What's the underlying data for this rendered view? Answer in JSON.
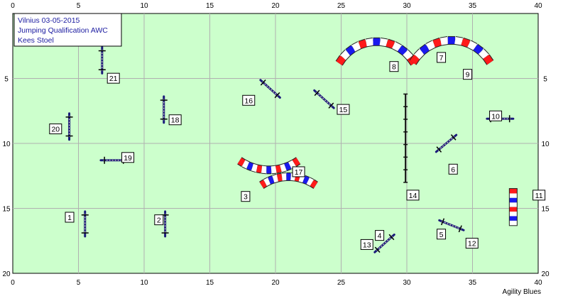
{
  "info_box": {
    "line1": "Vilnius 03-05-2015",
    "line2": "Jumping Qualification AWC",
    "line3": "Kees Stoel"
  },
  "x_ticks": [
    "0",
    "5",
    "10",
    "15",
    "20",
    "25",
    "30",
    "35",
    "40"
  ],
  "y_ticks": [
    "5",
    "10",
    "15",
    "20"
  ],
  "watermark": "Agility Blues",
  "colors": {
    "field": "#ccffcc",
    "grid": "#b0b0b0",
    "pole": "#1a1a7a",
    "red": "#ff1a1a",
    "blue": "#1a1aee",
    "white": "#ffffff"
  },
  "obstacles": [
    {
      "n": "1",
      "type": "jump",
      "x": 5.5,
      "y": 16.2,
      "angle": 90,
      "len": 1.9,
      "lx": 4.0,
      "ly": 15.3
    },
    {
      "n": "2",
      "type": "jump",
      "x": 11.6,
      "y": 16.2,
      "angle": 90,
      "len": 1.9,
      "lx": 10.8,
      "ly": 15.5
    },
    {
      "n": "3",
      "type": "tunnel",
      "cx": 21.0,
      "cy": 16.2,
      "r": 3.6,
      "a1": -125,
      "a2": -55,
      "lx": 17.4,
      "ly": 13.7
    },
    {
      "n": "4",
      "type": "jump",
      "x": 28.3,
      "y": 17.7,
      "angle": -42,
      "len": 2.0,
      "lx": 27.6,
      "ly": 16.7
    },
    {
      "n": "5",
      "type": "jump",
      "x": 33.4,
      "y": 16.3,
      "angle": 22,
      "len": 2.0,
      "lx": 32.3,
      "ly": 16.6
    },
    {
      "n": "6",
      "type": "jump",
      "x": 33.0,
      "y": 10.0,
      "angle": -40,
      "len": 2.0,
      "lx": 33.2,
      "ly": 11.6
    },
    {
      "n": "7",
      "type": "label",
      "lx": 32.3,
      "ly": 3.0
    },
    {
      "n": "8",
      "type": "tunnel",
      "cx": 27.7,
      "cy": 5.5,
      "r": 3.3,
      "a1": -150,
      "a2": -30,
      "lx": 28.7,
      "ly": 3.7
    },
    {
      "n": "9",
      "type": "tunnel",
      "cx": 33.4,
      "cy": 5.5,
      "r": 3.4,
      "a1": -150,
      "a2": -30,
      "lx": 34.3,
      "ly": 4.3
    },
    {
      "n": "10",
      "type": "jump",
      "x": 37.1,
      "y": 8.1,
      "angle": 0,
      "len": 2.0,
      "lx": 36.3,
      "ly": 7.5
    },
    {
      "n": "11",
      "type": "wall",
      "x": 38.1,
      "y": 13.5,
      "h": 2.8,
      "lx": 39.6,
      "ly": 13.6
    },
    {
      "n": "12",
      "type": "label",
      "lx": 34.5,
      "ly": 17.3
    },
    {
      "n": "13",
      "type": "label",
      "lx": 26.5,
      "ly": 17.4
    },
    {
      "n": "14",
      "type": "line",
      "x": 29.9,
      "y1": 6.2,
      "y2": 13.0,
      "lx": 30.0,
      "ly": 13.6
    },
    {
      "n": "15",
      "type": "jump",
      "x": 23.7,
      "y": 6.6,
      "angle": 42,
      "len": 2.0,
      "lx": 24.7,
      "ly": 7.0
    },
    {
      "n": "16",
      "type": "jump",
      "x": 19.6,
      "y": 5.8,
      "angle": 42,
      "len": 2.0,
      "lx": 17.5,
      "ly": 6.3
    },
    {
      "n": "17",
      "type": "tunnel",
      "cx": 19.5,
      "cy": 8.1,
      "r": 3.9,
      "a1": 125,
      "a2": 55,
      "lx": 21.3,
      "ly": 11.8
    },
    {
      "n": "18",
      "type": "jump",
      "x": 11.5,
      "y": 7.4,
      "angle": 90,
      "len": 2.0,
      "lx": 11.9,
      "ly": 7.8
    },
    {
      "n": "19",
      "type": "jump",
      "x": 7.7,
      "y": 11.3,
      "angle": 0,
      "len": 2.0,
      "lx": 8.3,
      "ly": 10.7
    },
    {
      "n": "20",
      "type": "jump",
      "x": 4.3,
      "y": 8.7,
      "angle": 90,
      "len": 2.0,
      "lx": 2.8,
      "ly": 8.5
    },
    {
      "n": "21",
      "type": "jump",
      "x": 6.8,
      "y": 3.6,
      "angle": 90,
      "len": 2.0,
      "lx": 7.2,
      "ly": 4.6
    }
  ]
}
